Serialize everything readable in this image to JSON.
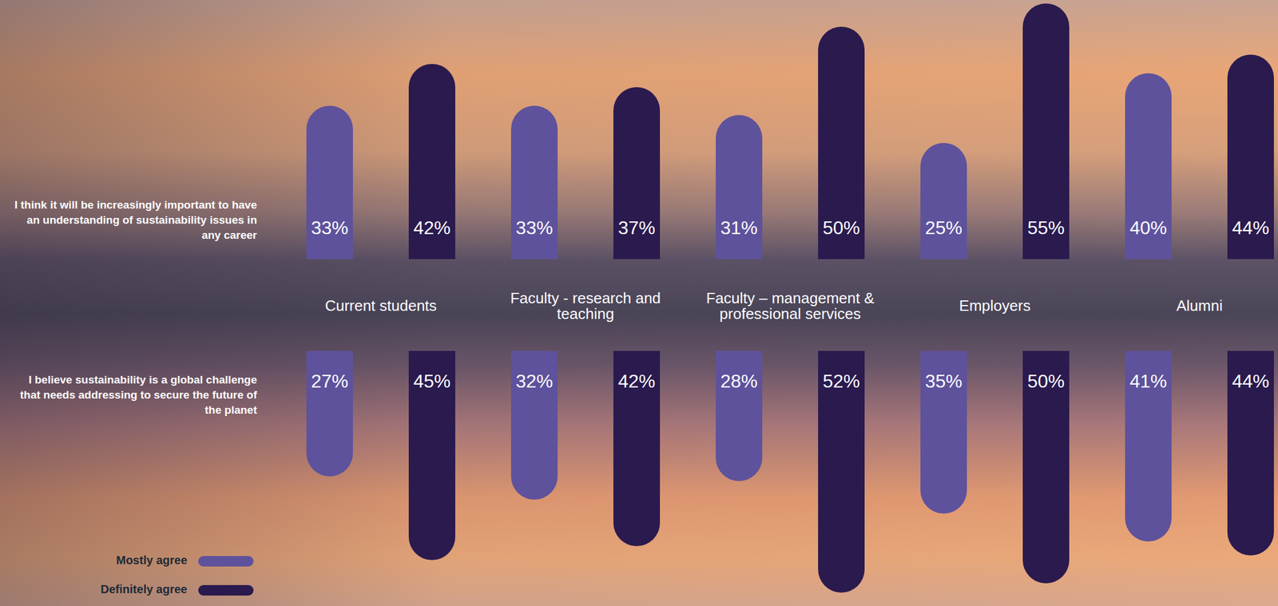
{
  "chart_data": [
    {
      "type": "bar",
      "title": "I think it will be increasingly important to have an understanding of sustainability issues in any career",
      "categories": [
        "Current students",
        "Faculty - research and teaching",
        "Faculty – management & professional services",
        "Employers",
        "Alumni"
      ],
      "series": [
        {
          "name": "Mostly agree",
          "color": "#5e529c",
          "values": [
            33,
            33,
            31,
            25,
            40
          ],
          "value_labels": [
            "33%",
            "33%",
            "31%",
            "25%",
            "40%"
          ]
        },
        {
          "name": "Definitely agree",
          "color": "#2a1a4e",
          "values": [
            42,
            37,
            50,
            55,
            44
          ],
          "value_labels": [
            "42%",
            "37%",
            "50%",
            "55%",
            "44%"
          ]
        }
      ],
      "ylim": [
        0,
        55
      ],
      "data_labels": true,
      "tick_labels": "x",
      "legend": "lower left"
    },
    {
      "type": "bar",
      "title": "I believe sustainability is a global challenge that needs addressing to secure the future of the planet",
      "series": [
        {
          "color": "#5e529c",
          "values": [
            27,
            32,
            28,
            35,
            41
          ],
          "value_labels": [
            "27%",
            "32%",
            "28%",
            "35%",
            "41%"
          ]
        },
        {
          "color": "#2a1a4e",
          "values": [
            45,
            42,
            52,
            50,
            44
          ],
          "value_labels": [
            "45%",
            "42%",
            "52%",
            "50%",
            "44%"
          ]
        }
      ],
      "ylim": [
        0,
        55
      ],
      "data_labels": true,
      "tick_labels": false
    }
  ]
}
